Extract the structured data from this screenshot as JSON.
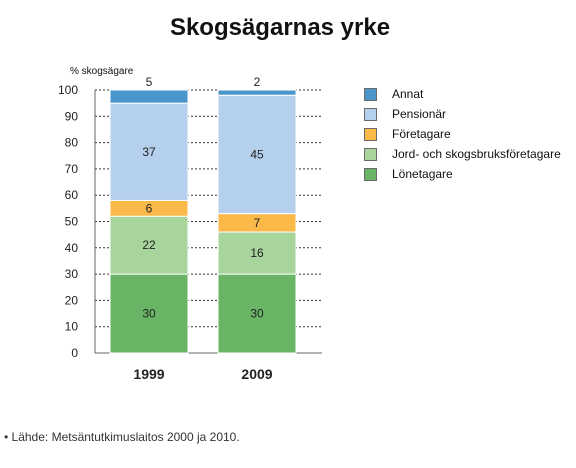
{
  "chart_data": {
    "type": "bar",
    "stacked": true,
    "title": "Skogsägarnas yrke",
    "ylabel": "% skogsägare",
    "xlabel": "",
    "categories": [
      "1999",
      "2009"
    ],
    "ylim": [
      0,
      100
    ],
    "yticks": [
      0,
      10,
      20,
      30,
      40,
      50,
      60,
      70,
      80,
      90,
      100
    ],
    "grid": true,
    "legend_position": "right",
    "series": [
      {
        "name": "Lönetagare",
        "values": [
          30,
          30
        ],
        "color": "#6ab565"
      },
      {
        "name": "Jord- och skogsbruksföretagare",
        "values": [
          22,
          16
        ],
        "color": "#a7d59b"
      },
      {
        "name": "Företagare",
        "values": [
          6,
          7
        ],
        "color": "#fbb94a"
      },
      {
        "name": "Pensionär",
        "values": [
          37,
          45
        ],
        "color": "#b5d0ec"
      },
      {
        "name": "Annat",
        "values": [
          5,
          2
        ],
        "color": "#4a96cb"
      }
    ],
    "legend_order": [
      "Annat",
      "Pensionär",
      "Företagare",
      "Jord- och skogsbruksföretagare",
      "Lönetagare"
    ],
    "source": "• Lähde: Metsäntutkimuslaitos 2000 ja 2010."
  }
}
